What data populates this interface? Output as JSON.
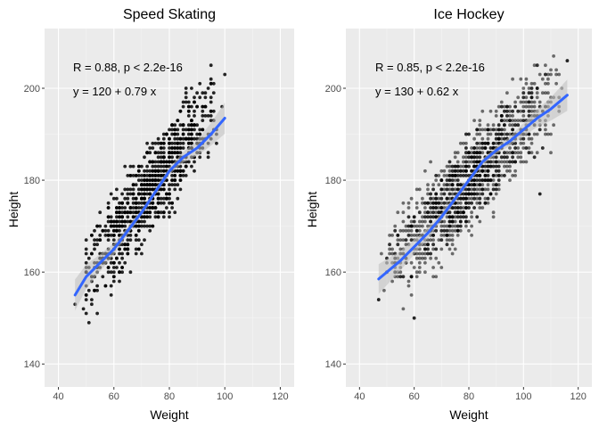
{
  "chart_data": [
    {
      "type": "scatter",
      "title": "Speed Skating",
      "xlabel": "Weight",
      "ylabel": "Height",
      "xlim": [
        35,
        125
      ],
      "ylim": [
        135,
        213
      ],
      "x_ticks": [
        40,
        60,
        80,
        100,
        120
      ],
      "y_ticks": [
        140,
        160,
        180,
        200
      ],
      "grid": true,
      "point_color": "#000000",
      "fit_color": "#3366FF",
      "ribbon_color": "#bdbdbd",
      "stat_r": "R = 0.88, p < 2.2e-16",
      "stat_eq": "y = 120 + 0.79 x",
      "x_range": [
        46,
        100
      ],
      "scatter_band": {
        "intercept": 120,
        "slope": 0.79,
        "half_width": 10
      },
      "spread_count": 900,
      "smooth_fit": [
        [
          46,
          155
        ],
        [
          50,
          159
        ],
        [
          55,
          162
        ],
        [
          60,
          165
        ],
        [
          65,
          169
        ],
        [
          70,
          173
        ],
        [
          75,
          177.5
        ],
        [
          80,
          182
        ],
        [
          85,
          185
        ],
        [
          90,
          187
        ],
        [
          95,
          190
        ],
        [
          100,
          193.5
        ]
      ],
      "extreme_points": [
        [
          100,
          203
        ],
        [
          96,
          199
        ],
        [
          51,
          149
        ],
        [
          46,
          153
        ],
        [
          54,
          151
        ]
      ]
    },
    {
      "type": "scatter",
      "title": "Ice Hockey",
      "xlabel": "Weight",
      "ylabel": "Height",
      "xlim": [
        35,
        125
      ],
      "ylim": [
        135,
        213
      ],
      "x_ticks": [
        40,
        60,
        80,
        100,
        120
      ],
      "y_ticks": [
        140,
        160,
        180,
        200
      ],
      "grid": true,
      "point_color": "#000000",
      "fit_color": "#3366FF",
      "ribbon_color": "#bdbdbd",
      "stat_r": "R = 0.85, p < 2.2e-16",
      "stat_eq": "y = 130 + 0.62 x",
      "x_range": [
        46,
        116
      ],
      "scatter_band": {
        "intercept": 130,
        "slope": 0.62,
        "half_width": 10
      },
      "spread_count": 1300,
      "smooth_fit": [
        [
          47,
          158.5
        ],
        [
          55,
          162.5
        ],
        [
          60,
          165.5
        ],
        [
          65,
          168.5
        ],
        [
          70,
          172
        ],
        [
          75,
          176
        ],
        [
          80,
          180
        ],
        [
          85,
          184
        ],
        [
          90,
          186.5
        ],
        [
          95,
          188.5
        ],
        [
          100,
          191
        ],
        [
          105,
          193.5
        ],
        [
          110,
          195.5
        ],
        [
          116,
          198.5
        ]
      ],
      "extreme_points": [
        [
          116,
          206
        ],
        [
          60,
          150
        ],
        [
          106,
          177
        ],
        [
          102,
          197
        ],
        [
          47,
          154
        ]
      ]
    }
  ]
}
